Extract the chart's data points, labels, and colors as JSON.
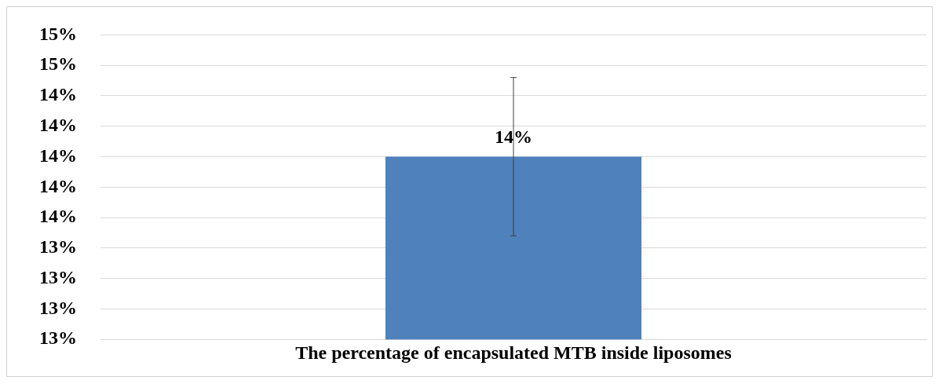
{
  "chart_data": {
    "type": "bar",
    "categories": [
      "The percentage of encapsulated MTB inside liposomes"
    ],
    "values": [
      14.0
    ],
    "color": "#4f81bd",
    "errors": [
      0.52
    ],
    "value_labels": [
      "14%"
    ],
    "ylim": [
      12.8,
      14.8
    ],
    "yticks": [
      {
        "value": 12.8,
        "label": "13%"
      },
      {
        "value": 13.0,
        "label": "13%"
      },
      {
        "value": 13.2,
        "label": "13%"
      },
      {
        "value": 13.4,
        "label": "13%"
      },
      {
        "value": 13.6,
        "label": "14%"
      },
      {
        "value": 13.8,
        "label": "14%"
      },
      {
        "value": 14.0,
        "label": "14%"
      },
      {
        "value": 14.2,
        "label": "14%"
      },
      {
        "value": 14.4,
        "label": "14%"
      },
      {
        "value": 14.6,
        "label": "15%"
      },
      {
        "value": 14.8,
        "label": "15%"
      }
    ],
    "grid": "y",
    "legend": false
  }
}
